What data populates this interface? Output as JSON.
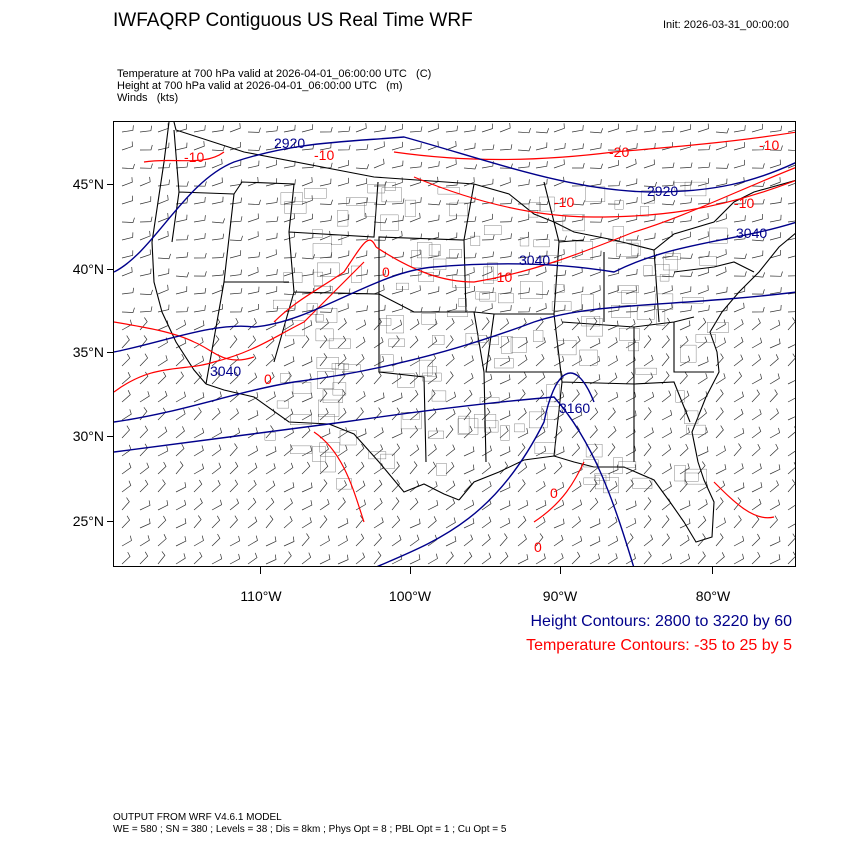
{
  "header": {
    "title": "IWFAQRP Contiguous US Real Time WRF",
    "init": "Init: 2026-03-31_00:00:00"
  },
  "fields": [
    {
      "text": "Temperature at 700 hPa valid at 2026-04-01_06:00:00 UTC",
      "unit": "(C)"
    },
    {
      "text": "Height at 700 hPa valid at 2026-04-01_06:00:00 UTC",
      "unit": "(m)"
    },
    {
      "text": "Winds",
      "unit": "(kts)"
    }
  ],
  "axes": {
    "lat_labels": [
      "45°N",
      "40°N",
      "35°N",
      "30°N",
      "25°N"
    ],
    "lon_labels": [
      "110°W",
      "100°W",
      "90°W",
      "80°W"
    ]
  },
  "contour_labels": {
    "height": [
      "2920",
      "2920",
      "3040",
      "3040",
      "3040",
      "3160"
    ],
    "temperature": [
      "-10",
      "-20",
      "-10",
      "-10",
      "-10",
      "-10",
      "-10",
      "0",
      "0",
      "0",
      "0"
    ]
  },
  "legend": {
    "height": "Height Contours: 2800 to 3220 by 60",
    "temperature": "Temperature Contours: -35 to 25 by 5",
    "height_color": "#00008b",
    "temperature_color": "#ff0000"
  },
  "footer": {
    "line1": "OUTPUT FROM WRF V4.6.1 MODEL",
    "line2": "WE = 580 ; SN = 380 ; Levels = 38 ; Dis = 8km ; Phys Opt = 8 ; PBL Opt = 1 ; Cu Opt = 5"
  }
}
